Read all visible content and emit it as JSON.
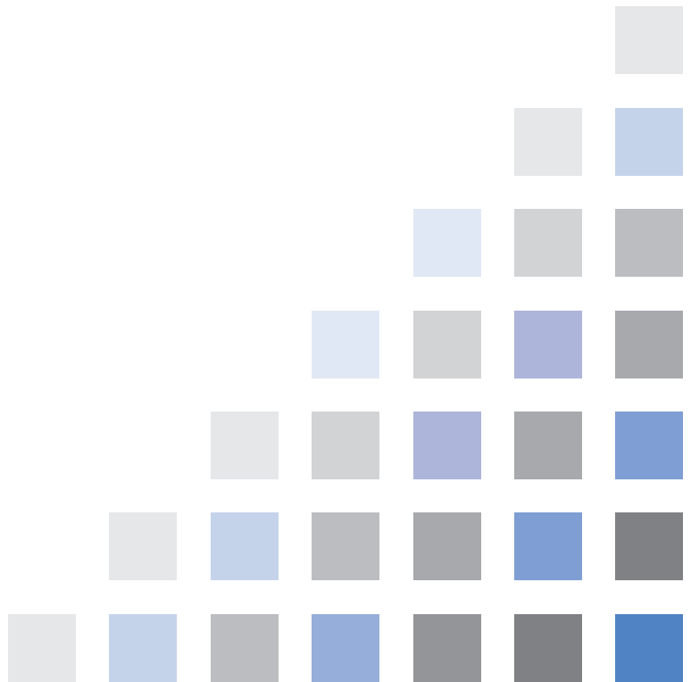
{
  "palette": {
    "light-gray": "#e6e7e9",
    "pale-blue": "#e1e8f5",
    "light-blue": "#c5d3ea",
    "silver": "#d2d3d5",
    "gray": "#bbbdc1",
    "dark-silver": "#a7a9ad",
    "slate-gray": "#949599",
    "charcoal-gray": "#808185",
    "lavender": "#adb5da",
    "periwinkle": "#96afda",
    "cornflower": "#7f9ed3",
    "steel-blue": "#5083c4"
  },
  "rows": [
    [
      null,
      null,
      null,
      null,
      null,
      null,
      "light-gray"
    ],
    [
      null,
      null,
      null,
      null,
      null,
      "light-gray",
      "light-blue"
    ],
    [
      null,
      null,
      null,
      null,
      "pale-blue",
      "silver",
      "gray"
    ],
    [
      null,
      null,
      null,
      "pale-blue",
      "silver",
      "lavender",
      "dark-silver"
    ],
    [
      null,
      null,
      "light-gray",
      "silver",
      "lavender",
      "dark-silver",
      "cornflower"
    ],
    [
      null,
      "light-gray",
      "light-blue",
      "gray",
      "dark-silver",
      "cornflower",
      "charcoal-gray"
    ],
    [
      "light-gray",
      "light-blue",
      "gray",
      "periwinkle",
      "slate-gray",
      "charcoal-gray",
      "steel-blue"
    ]
  ]
}
